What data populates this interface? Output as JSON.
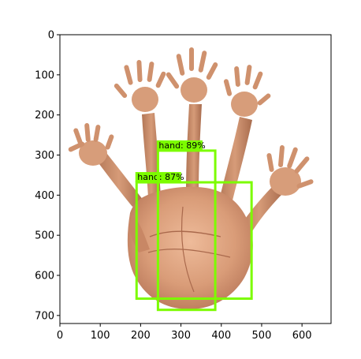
{
  "image": {
    "description_icon": "photo-of-multi-armed-hand-composite",
    "background_color": "#ffffff",
    "skin_light": "#e6b08f",
    "skin_mid": "#c98a67",
    "skin_dark": "#9a5e42",
    "shadow": "#7a4a35"
  },
  "axes": {
    "x_ticks": [
      "0",
      "100",
      "200",
      "300",
      "400",
      "500",
      "600"
    ],
    "y_ticks": [
      "0",
      "100",
      "200",
      "300",
      "400",
      "500",
      "600",
      "700"
    ],
    "x_values": [
      0,
      100,
      200,
      300,
      400,
      500,
      600
    ],
    "y_values": [
      0,
      100,
      200,
      300,
      400,
      500,
      600,
      700
    ],
    "xlim": [
      0,
      672
    ],
    "ylim": [
      720,
      0
    ]
  },
  "detections": [
    {
      "label": "hand: 87%",
      "color": "#7cfc00",
      "x1": 190,
      "y1": 368,
      "x2": 475,
      "y2": 658
    },
    {
      "label": "hand: 89%",
      "color": "#7cfc00",
      "x1": 243,
      "y1": 289,
      "x2": 385,
      "y2": 686
    }
  ]
}
